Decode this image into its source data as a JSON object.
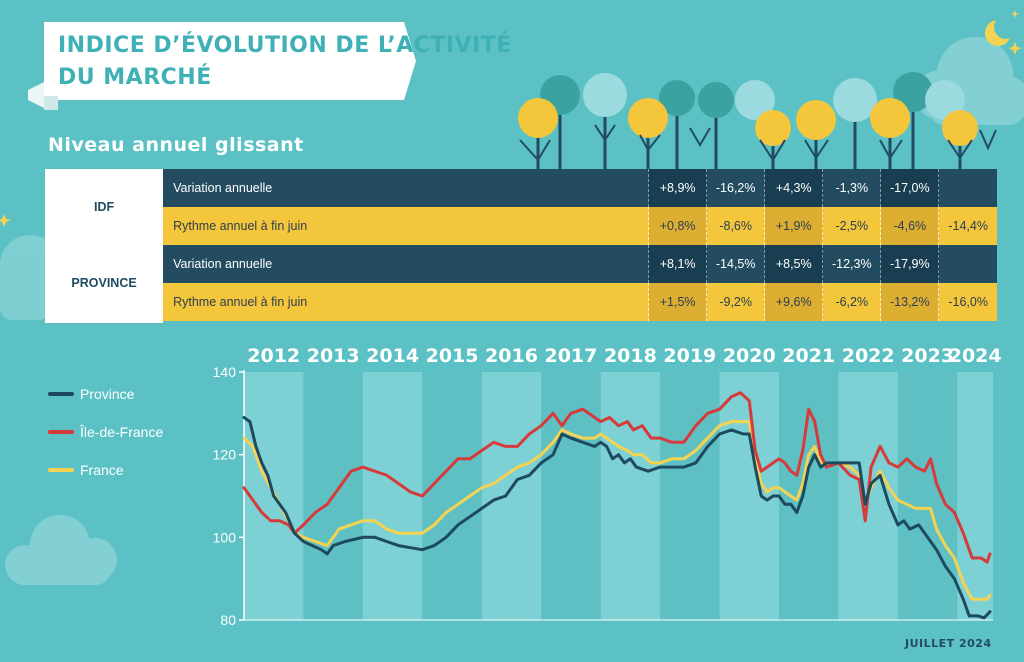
{
  "header": {
    "title_line1": "INDICE D’ÉVOLUTION DE L’ACTIVITÉ",
    "title_line2": "DU MARCHÉ",
    "subtitle": "Niveau annuel glissant"
  },
  "table": {
    "regions": [
      {
        "name": "IDF",
        "rows": [
          {
            "label": "Variation annuelle",
            "style": "dark",
            "values": [
              "+8,9%",
              "-16,2%",
              "+4,3%",
              "-1,3%",
              "-17,0%",
              ""
            ]
          },
          {
            "label": "Rythme annuel à fin juin",
            "style": "light",
            "values": [
              "+0,8%",
              "-8,6%",
              "+1,9%",
              "-2,5%",
              "-4,6%",
              "-14,4%"
            ]
          }
        ]
      },
      {
        "name": "PROVINCE",
        "rows": [
          {
            "label": "Variation annuelle",
            "style": "dark",
            "values": [
              "+8,1%",
              "-14,5%",
              "+8,5%",
              "-12,3%",
              "-17,9%",
              ""
            ]
          },
          {
            "label": "Rythme annuel à fin juin",
            "style": "light",
            "values": [
              "+1,5%",
              "-9,2%",
              "+9,6%",
              "-6,2%",
              "-13,2%",
              "-16,0%"
            ]
          }
        ]
      }
    ]
  },
  "footnote": "JUILLET 2024",
  "colors": {
    "background": "#5bc1c4",
    "dark_row": "#234c61",
    "light_row": "#f4c63c",
    "province": "#1d4a5f",
    "idf": "#d63a3a",
    "france": "#f5d352"
  },
  "chart_data": {
    "type": "line",
    "years": [
      "2012",
      "2013",
      "2014",
      "2015",
      "2016",
      "2017",
      "2018",
      "2019",
      "2020",
      "2021",
      "2022",
      "2023",
      "2024"
    ],
    "x_range": [
      2012.0,
      2024.6
    ],
    "ylim": [
      80,
      140
    ],
    "yticks": [
      80,
      100,
      120,
      140
    ],
    "legend_position": "left",
    "series": [
      {
        "name": "Province",
        "color": "#1d4a5f",
        "points": [
          [
            2012.0,
            129
          ],
          [
            2012.1,
            128
          ],
          [
            2012.2,
            122
          ],
          [
            2012.3,
            118
          ],
          [
            2012.4,
            115
          ],
          [
            2012.5,
            110
          ],
          [
            2012.7,
            106
          ],
          [
            2012.85,
            101
          ],
          [
            2013.0,
            99
          ],
          [
            2013.15,
            98
          ],
          [
            2013.3,
            97
          ],
          [
            2013.4,
            96
          ],
          [
            2013.5,
            98
          ],
          [
            2013.7,
            99
          ],
          [
            2014.0,
            100
          ],
          [
            2014.2,
            100
          ],
          [
            2014.4,
            99
          ],
          [
            2014.6,
            98
          ],
          [
            2014.8,
            97.5
          ],
          [
            2015.0,
            97
          ],
          [
            2015.2,
            98
          ],
          [
            2015.4,
            100
          ],
          [
            2015.6,
            103
          ],
          [
            2015.8,
            105
          ],
          [
            2016.0,
            107
          ],
          [
            2016.2,
            109
          ],
          [
            2016.4,
            110
          ],
          [
            2016.6,
            114
          ],
          [
            2016.8,
            115
          ],
          [
            2017.0,
            118
          ],
          [
            2017.2,
            120
          ],
          [
            2017.35,
            125
          ],
          [
            2017.5,
            124
          ],
          [
            2017.7,
            123
          ],
          [
            2017.9,
            122
          ],
          [
            2018.0,
            123
          ],
          [
            2018.1,
            122
          ],
          [
            2018.2,
            119
          ],
          [
            2018.3,
            120
          ],
          [
            2018.4,
            118
          ],
          [
            2018.5,
            119
          ],
          [
            2018.6,
            117
          ],
          [
            2018.8,
            116
          ],
          [
            2019.0,
            117
          ],
          [
            2019.2,
            117
          ],
          [
            2019.4,
            117
          ],
          [
            2019.6,
            118
          ],
          [
            2019.8,
            122
          ],
          [
            2020.0,
            125
          ],
          [
            2020.2,
            126
          ],
          [
            2020.4,
            125
          ],
          [
            2020.5,
            125
          ],
          [
            2020.6,
            117
          ],
          [
            2020.7,
            110
          ],
          [
            2020.8,
            109
          ],
          [
            2020.9,
            110
          ],
          [
            2021.0,
            110
          ],
          [
            2021.1,
            108
          ],
          [
            2021.2,
            108
          ],
          [
            2021.3,
            106
          ],
          [
            2021.4,
            110
          ],
          [
            2021.5,
            117
          ],
          [
            2021.6,
            120
          ],
          [
            2021.7,
            117
          ],
          [
            2021.8,
            118
          ],
          [
            2022.0,
            118
          ],
          [
            2022.2,
            118
          ],
          [
            2022.35,
            118
          ],
          [
            2022.45,
            108
          ],
          [
            2022.55,
            113
          ],
          [
            2022.7,
            115
          ],
          [
            2022.85,
            108
          ],
          [
            2023.0,
            103
          ],
          [
            2023.1,
            104
          ],
          [
            2023.2,
            102
          ],
          [
            2023.35,
            103
          ],
          [
            2023.5,
            100
          ],
          [
            2023.65,
            97
          ],
          [
            2023.8,
            93
          ],
          [
            2023.95,
            90
          ],
          [
            2024.1,
            85
          ],
          [
            2024.2,
            81
          ],
          [
            2024.35,
            81
          ],
          [
            2024.45,
            80.5
          ],
          [
            2024.55,
            82
          ]
        ]
      },
      {
        "name": "Île-de-France",
        "color": "#d63a3a",
        "points": [
          [
            2012.0,
            112
          ],
          [
            2012.15,
            109
          ],
          [
            2012.3,
            106
          ],
          [
            2012.45,
            104
          ],
          [
            2012.6,
            104
          ],
          [
            2012.75,
            103
          ],
          [
            2012.85,
            101
          ],
          [
            2013.0,
            103
          ],
          [
            2013.2,
            106
          ],
          [
            2013.4,
            108
          ],
          [
            2013.6,
            112
          ],
          [
            2013.8,
            116
          ],
          [
            2014.0,
            117
          ],
          [
            2014.2,
            116
          ],
          [
            2014.4,
            115
          ],
          [
            2014.6,
            113
          ],
          [
            2014.8,
            111
          ],
          [
            2015.0,
            110
          ],
          [
            2015.2,
            113
          ],
          [
            2015.4,
            116
          ],
          [
            2015.6,
            119
          ],
          [
            2015.8,
            119
          ],
          [
            2016.0,
            121
          ],
          [
            2016.2,
            123
          ],
          [
            2016.4,
            122
          ],
          [
            2016.6,
            122
          ],
          [
            2016.8,
            125
          ],
          [
            2017.0,
            127
          ],
          [
            2017.2,
            130
          ],
          [
            2017.35,
            127
          ],
          [
            2017.5,
            130
          ],
          [
            2017.7,
            131
          ],
          [
            2017.9,
            129
          ],
          [
            2018.0,
            128
          ],
          [
            2018.15,
            129
          ],
          [
            2018.3,
            127
          ],
          [
            2018.45,
            128
          ],
          [
            2018.55,
            126
          ],
          [
            2018.7,
            127
          ],
          [
            2018.85,
            124
          ],
          [
            2019.0,
            124
          ],
          [
            2019.2,
            123
          ],
          [
            2019.4,
            123
          ],
          [
            2019.6,
            127
          ],
          [
            2019.8,
            130
          ],
          [
            2020.0,
            131
          ],
          [
            2020.2,
            134
          ],
          [
            2020.35,
            135
          ],
          [
            2020.5,
            133
          ],
          [
            2020.6,
            121
          ],
          [
            2020.7,
            116
          ],
          [
            2020.8,
            117
          ],
          [
            2020.9,
            118
          ],
          [
            2021.0,
            119
          ],
          [
            2021.1,
            118
          ],
          [
            2021.2,
            116
          ],
          [
            2021.3,
            115
          ],
          [
            2021.4,
            121
          ],
          [
            2021.5,
            131
          ],
          [
            2021.6,
            128
          ],
          [
            2021.7,
            120
          ],
          [
            2021.8,
            117
          ],
          [
            2022.0,
            118
          ],
          [
            2022.2,
            115
          ],
          [
            2022.35,
            114
          ],
          [
            2022.45,
            104
          ],
          [
            2022.55,
            117
          ],
          [
            2022.7,
            122
          ],
          [
            2022.85,
            118
          ],
          [
            2023.0,
            117
          ],
          [
            2023.15,
            119
          ],
          [
            2023.3,
            117
          ],
          [
            2023.45,
            116
          ],
          [
            2023.55,
            119
          ],
          [
            2023.65,
            113
          ],
          [
            2023.8,
            108
          ],
          [
            2023.95,
            106
          ],
          [
            2024.1,
            101
          ],
          [
            2024.25,
            95
          ],
          [
            2024.4,
            95
          ],
          [
            2024.5,
            94
          ],
          [
            2024.55,
            96
          ]
        ]
      },
      {
        "name": "France",
        "color": "#f5d352",
        "points": [
          [
            2012.0,
            124
          ],
          [
            2012.15,
            122
          ],
          [
            2012.3,
            116
          ],
          [
            2012.45,
            112
          ],
          [
            2012.6,
            108
          ],
          [
            2012.75,
            104
          ],
          [
            2012.85,
            101
          ],
          [
            2013.0,
            100
          ],
          [
            2013.2,
            99
          ],
          [
            2013.4,
            98
          ],
          [
            2013.6,
            102
          ],
          [
            2013.8,
            103
          ],
          [
            2014.0,
            104
          ],
          [
            2014.2,
            104
          ],
          [
            2014.4,
            102
          ],
          [
            2014.6,
            101
          ],
          [
            2014.8,
            101
          ],
          [
            2015.0,
            101
          ],
          [
            2015.2,
            103
          ],
          [
            2015.4,
            106
          ],
          [
            2015.6,
            108
          ],
          [
            2015.8,
            110
          ],
          [
            2016.0,
            112
          ],
          [
            2016.2,
            113
          ],
          [
            2016.4,
            115
          ],
          [
            2016.6,
            117
          ],
          [
            2016.8,
            118
          ],
          [
            2017.0,
            120
          ],
          [
            2017.2,
            123
          ],
          [
            2017.35,
            126
          ],
          [
            2017.5,
            125
          ],
          [
            2017.7,
            124
          ],
          [
            2017.9,
            124
          ],
          [
            2018.0,
            125
          ],
          [
            2018.2,
            123
          ],
          [
            2018.3,
            122
          ],
          [
            2018.45,
            121
          ],
          [
            2018.55,
            120
          ],
          [
            2018.7,
            120
          ],
          [
            2018.85,
            118
          ],
          [
            2019.0,
            118
          ],
          [
            2019.2,
            119
          ],
          [
            2019.4,
            119
          ],
          [
            2019.6,
            121
          ],
          [
            2019.8,
            124
          ],
          [
            2020.0,
            127
          ],
          [
            2020.2,
            128
          ],
          [
            2020.4,
            128
          ],
          [
            2020.5,
            128
          ],
          [
            2020.6,
            119
          ],
          [
            2020.7,
            113
          ],
          [
            2020.8,
            111
          ],
          [
            2020.9,
            112
          ],
          [
            2021.0,
            112
          ],
          [
            2021.1,
            111
          ],
          [
            2021.2,
            110
          ],
          [
            2021.3,
            109
          ],
          [
            2021.4,
            113
          ],
          [
            2021.5,
            120
          ],
          [
            2021.6,
            122
          ],
          [
            2021.7,
            118
          ],
          [
            2021.8,
            118
          ],
          [
            2022.0,
            118
          ],
          [
            2022.2,
            117
          ],
          [
            2022.35,
            115
          ],
          [
            2022.45,
            108
          ],
          [
            2022.55,
            112
          ],
          [
            2022.7,
            116
          ],
          [
            2022.85,
            112
          ],
          [
            2023.0,
            109
          ],
          [
            2023.15,
            108
          ],
          [
            2023.3,
            107
          ],
          [
            2023.45,
            107
          ],
          [
            2023.55,
            107
          ],
          [
            2023.65,
            102
          ],
          [
            2023.8,
            98
          ],
          [
            2023.95,
            95
          ],
          [
            2024.1,
            89
          ],
          [
            2024.25,
            85
          ],
          [
            2024.4,
            85
          ],
          [
            2024.5,
            85
          ],
          [
            2024.55,
            86
          ]
        ]
      }
    ]
  }
}
